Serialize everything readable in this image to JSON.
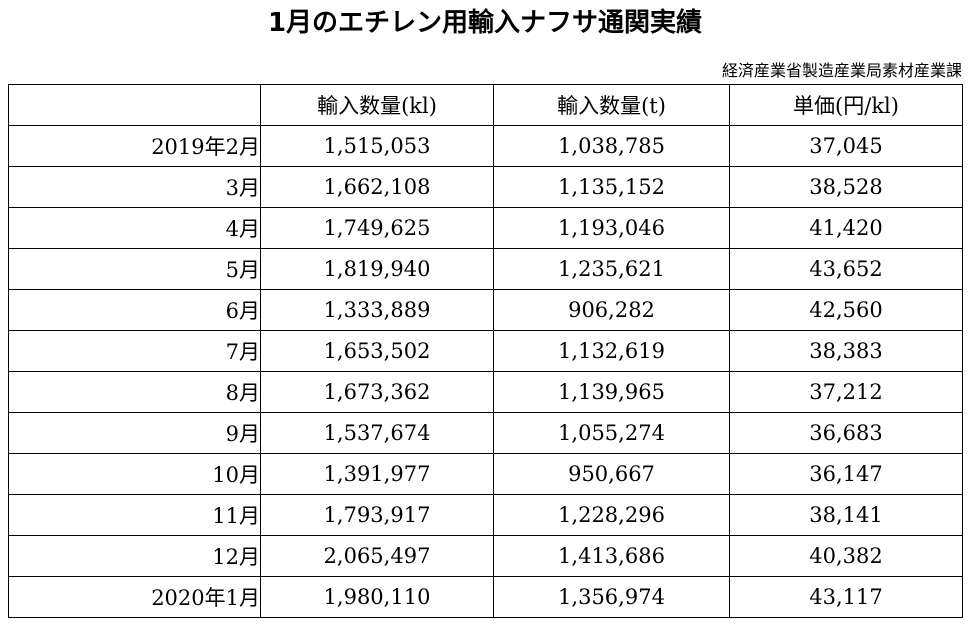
{
  "title": "1月のエチレン用輸入ナフサ通関実績",
  "source": "経済産業省製造産業局素材産業課",
  "table": {
    "headers": [
      "",
      "輸入数量(kl)",
      "輸入数量(t)",
      "単価(円/kl)"
    ],
    "rows": [
      {
        "month": "2019年2月",
        "kl": "1,515,053",
        "t": "1,038,785",
        "price": "37,045"
      },
      {
        "month": "3月",
        "kl": "1,662,108",
        "t": "1,135,152",
        "price": "38,528"
      },
      {
        "month": "4月",
        "kl": "1,749,625",
        "t": "1,193,046",
        "price": "41,420"
      },
      {
        "month": "5月",
        "kl": "1,819,940",
        "t": "1,235,621",
        "price": "43,652"
      },
      {
        "month": "6月",
        "kl": "1,333,889",
        "t": "906,282",
        "price": "42,560"
      },
      {
        "month": "7月",
        "kl": "1,653,502",
        "t": "1,132,619",
        "price": "38,383"
      },
      {
        "month": "8月",
        "kl": "1,673,362",
        "t": "1,139,965",
        "price": "37,212"
      },
      {
        "month": "9月",
        "kl": "1,537,674",
        "t": "1,055,274",
        "price": "36,683"
      },
      {
        "month": "10月",
        "kl": "1,391,977",
        "t": "950,667",
        "price": "36,147"
      },
      {
        "month": "11月",
        "kl": "1,793,917",
        "t": "1,228,296",
        "price": "38,141"
      },
      {
        "month": "12月",
        "kl": "2,065,497",
        "t": "1,413,686",
        "price": "40,382"
      },
      {
        "month": "2020年1月",
        "kl": "1,980,110",
        "t": "1,356,974",
        "price": "43,117"
      }
    ]
  }
}
